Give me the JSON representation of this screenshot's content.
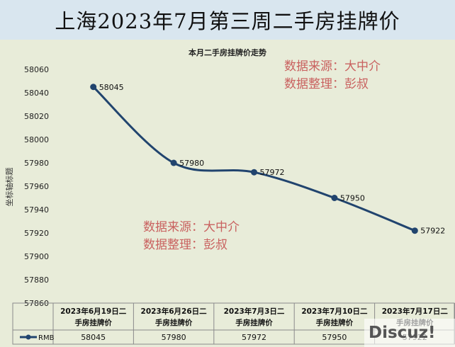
{
  "page": {
    "title": "上海2023年7月第三周二手房挂牌价",
    "brand": "Discuz!"
  },
  "watermarks": [
    [
      "数据来源：大中介",
      "数据整理：彭叔"
    ],
    [
      "数据来源：大中介",
      "数据整理：彭叔"
    ]
  ],
  "colors": {
    "line": "#21446e",
    "background": "#e8ecd9",
    "header_background": "#d9e6ef",
    "watermark": "#c9615f"
  },
  "chart_data": {
    "type": "line",
    "title": "本月二手房挂牌价走势",
    "ylabel": "坐标轴标题",
    "xlabel": "",
    "ylim": [
      57860,
      58060
    ],
    "y_ticks": [
      58060,
      58040,
      58020,
      58000,
      57980,
      57960,
      57940,
      57920,
      57900,
      57880,
      57860
    ],
    "grid": false,
    "categories": [
      "2023年6月19日二手房挂牌价",
      "2023年6月26日二手房挂牌价",
      "2023年7月3日二手房挂牌价",
      "2023年7月10日二手房挂牌价",
      "2023年7月17日二手房挂牌价"
    ],
    "series": [
      {
        "name": "RMB",
        "values": [
          58045,
          57980,
          57972,
          57950,
          57922
        ]
      }
    ],
    "data_labels": true,
    "legend": "bottom-left (data table legend key)",
    "data_table": true
  }
}
